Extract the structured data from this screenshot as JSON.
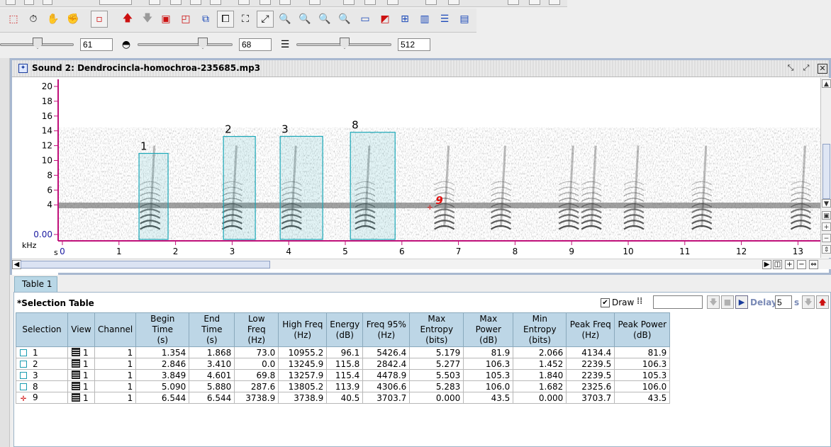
{
  "toolbar": {
    "slider1_value": "61",
    "slider2_value": "68",
    "slider3_value": "512"
  },
  "window": {
    "title": "Sound 2: Dendrocincla-homochroa-235685.mp3"
  },
  "spectrogram": {
    "y_unit": "kHz",
    "x_unit": "s",
    "y_ticks": [
      "20",
      "18",
      "16",
      "14",
      "12",
      "10",
      "8",
      "6",
      "4",
      "0.00"
    ],
    "x_ticks": [
      "0",
      "1",
      "2",
      "3",
      "4",
      "5",
      "6",
      "7",
      "8",
      "9",
      "10",
      "11",
      "12",
      "13"
    ],
    "selection_labels": [
      "1",
      "2",
      "3",
      "8"
    ],
    "point_label": "9",
    "colors": {
      "selection_box": "#1aa7b7",
      "axis": "#c0107a",
      "tick_text": "#1a1a80",
      "point": "#e01010"
    }
  },
  "table": {
    "tab_label": "Table 1",
    "panel_title": "*Selection Table",
    "draw_label": "Draw",
    "delay_label": "Delay:",
    "delay_value": "5",
    "delay_unit": "s",
    "columns": [
      "Selection",
      "View",
      "Channel",
      "Begin Time\n(s)",
      "End Time\n(s)",
      "Low Freq\n(Hz)",
      "High Freq\n(Hz)",
      "Energy\n(dB)",
      "Freq 95%\n(Hz)",
      "Max Entropy\n(bits)",
      "Max Power\n(dB)",
      "Min Entropy\n(bits)",
      "Peak Freq\n(Hz)",
      "Peak Power\n(dB)"
    ],
    "rows": [
      [
        "1",
        "1",
        "1",
        "1.354",
        "1.868",
        "73.0",
        "10955.2",
        "96.1",
        "5426.4",
        "5.179",
        "81.9",
        "2.066",
        "4134.4",
        "81.9"
      ],
      [
        "2",
        "1",
        "1",
        "2.846",
        "3.410",
        "0.0",
        "13245.9",
        "115.8",
        "2842.4",
        "5.277",
        "106.3",
        "1.452",
        "2239.5",
        "106.3"
      ],
      [
        "3",
        "1",
        "1",
        "3.849",
        "4.601",
        "69.8",
        "13257.9",
        "115.4",
        "4478.9",
        "5.503",
        "105.3",
        "1.840",
        "2239.5",
        "105.3"
      ],
      [
        "8",
        "1",
        "1",
        "5.090",
        "5.880",
        "287.6",
        "13805.2",
        "113.9",
        "4306.6",
        "5.283",
        "106.0",
        "1.682",
        "2325.6",
        "106.0"
      ],
      [
        "9",
        "1",
        "1",
        "6.544",
        "6.544",
        "3738.9",
        "3738.9",
        "40.5",
        "3703.7",
        "0.000",
        "43.5",
        "0.000",
        "3703.7",
        "43.5"
      ]
    ],
    "row_marks": [
      "box",
      "box",
      "box",
      "box",
      "point"
    ]
  }
}
